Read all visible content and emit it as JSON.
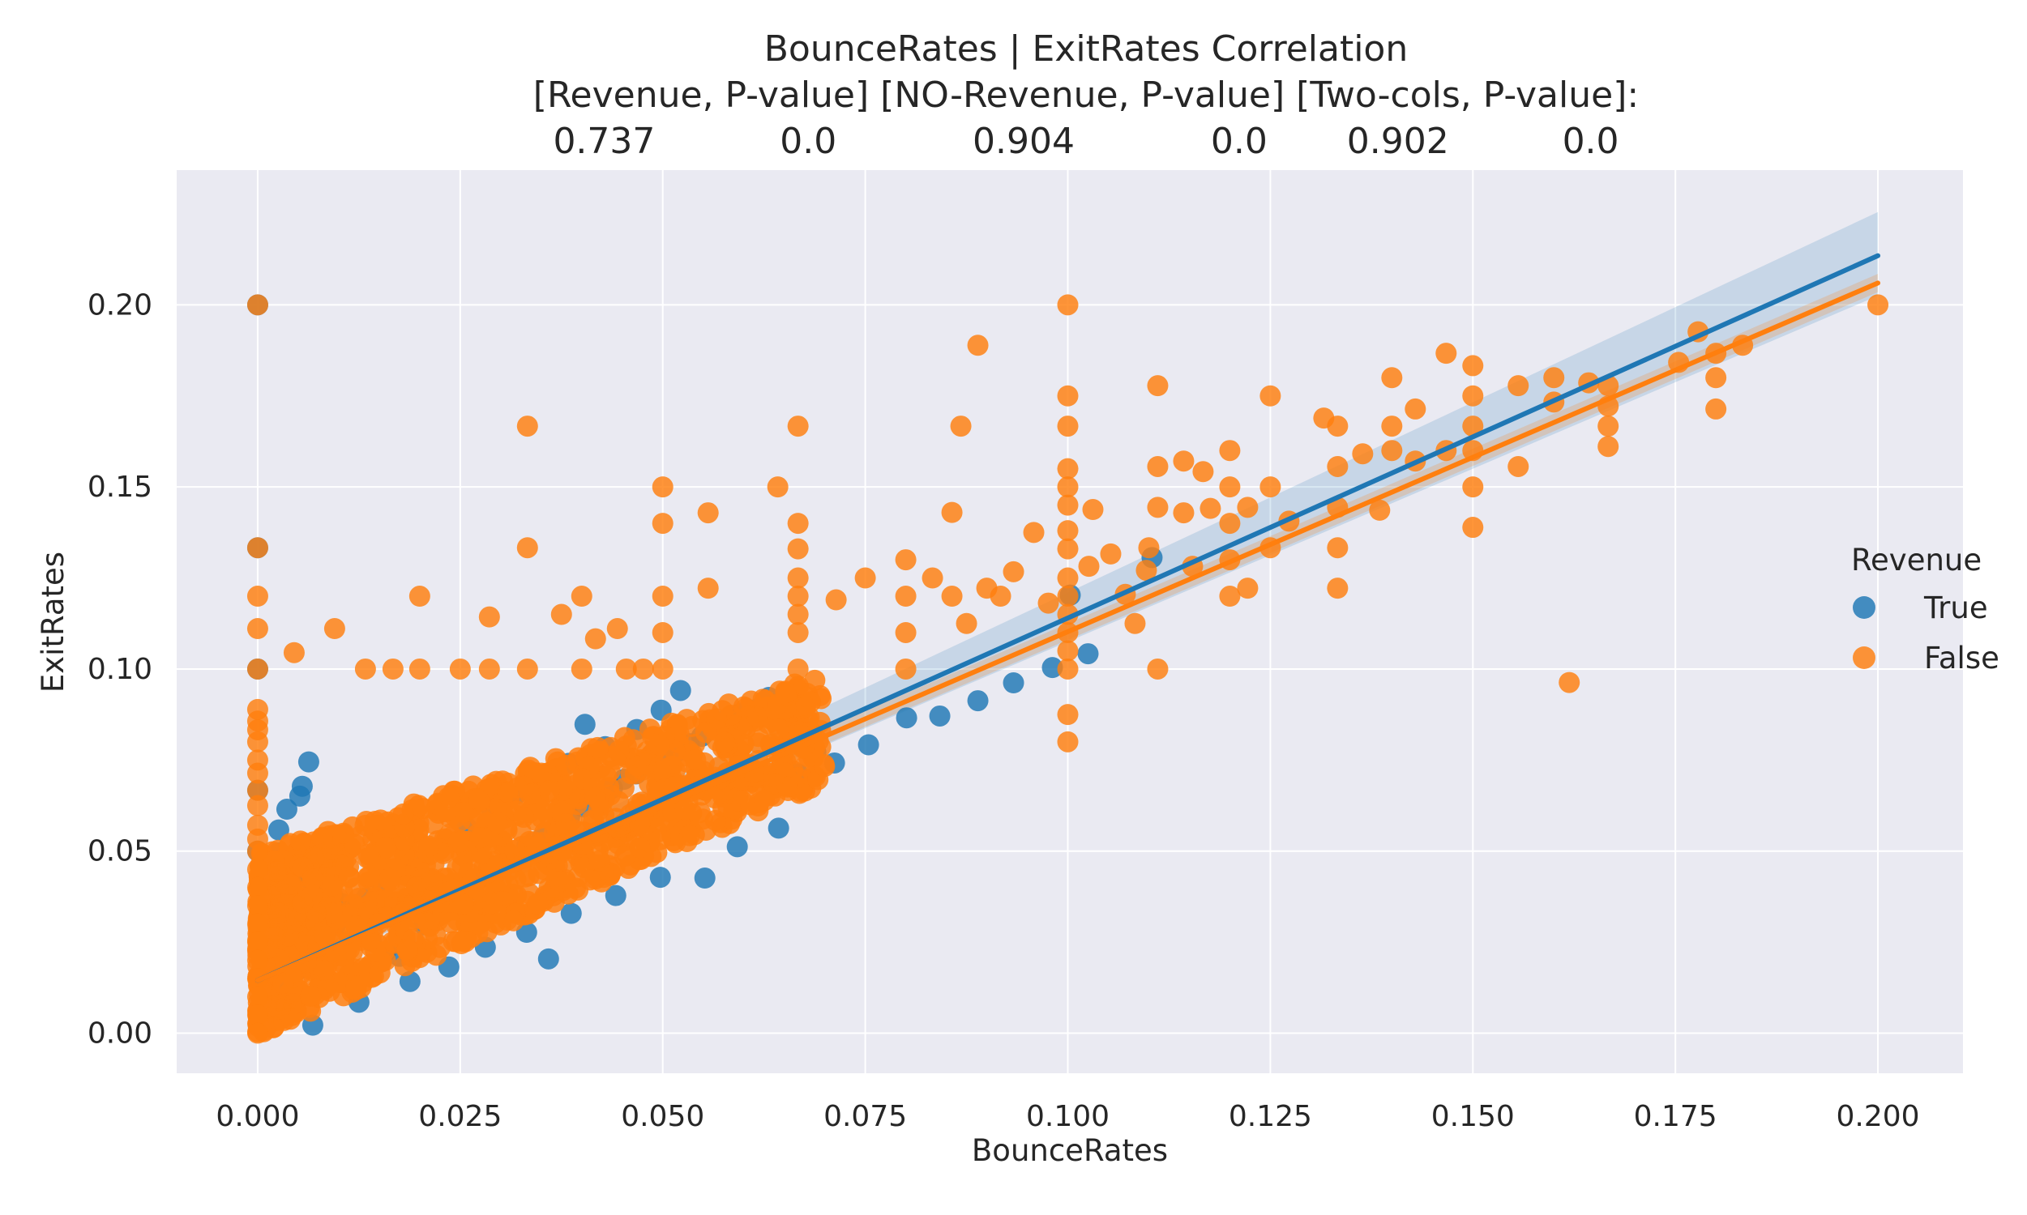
{
  "chart_data": {
    "type": "scatter",
    "title_lines": [
      "BounceRates | ExitRates    Correlation",
      "[Revenue,        P-value]    [NO-Revenue,     P-value]    [Two-cols,  P-value]:",
      "0.737           0.0            0.904            0.0       0.902          0.0"
    ],
    "correlations": [
      {
        "label": "Revenue",
        "r": 0.737,
        "p_value": 0.0
      },
      {
        "label": "NO-Revenue",
        "r": 0.904,
        "p_value": 0.0
      },
      {
        "label": "Two-cols",
        "r": 0.902,
        "p_value": 0.0
      }
    ],
    "xlabel": "BounceRates",
    "ylabel": "ExitRates",
    "xlim": [
      -0.01,
      0.2105
    ],
    "ylim": [
      -0.011,
      0.237
    ],
    "x_ticks": [
      0.0,
      0.025,
      0.05,
      0.075,
      0.1,
      0.125,
      0.15,
      0.175,
      0.2
    ],
    "x_tick_labels": [
      "0.000",
      "0.025",
      "0.050",
      "0.075",
      "0.100",
      "0.125",
      "0.150",
      "0.175",
      "0.200"
    ],
    "y_ticks": [
      0.0,
      0.05,
      0.1,
      0.15,
      0.2
    ],
    "y_tick_labels": [
      "0.00",
      "0.05",
      "0.10",
      "0.15",
      "0.20"
    ],
    "grid": true,
    "background": "#eaeaf2",
    "legend": {
      "title": "Revenue",
      "placement": "right"
    },
    "series": [
      {
        "name": "True",
        "color": "#1f77b4",
        "regression": {
          "x0": 0.0,
          "y0": 0.0145,
          "x1": 0.2,
          "y1": 0.2135,
          "ci_x1_upper": 0.2255,
          "ci_x1_lower": 0.2025
        },
        "points": [
          [
            0.0,
            0.2
          ],
          [
            0.0,
            0.1333
          ],
          [
            0.0,
            0.1
          ],
          [
            0.0,
            0.0667
          ],
          [
            0.0,
            0.05
          ],
          [
            0.0063,
            0.0745
          ],
          [
            0.0055,
            0.0678
          ],
          [
            0.0052,
            0.0651
          ],
          [
            0.0036,
            0.0615
          ],
          [
            0.0026,
            0.0558
          ],
          [
            0.0025,
            0.0495
          ],
          [
            0.0028,
            0.0462
          ],
          [
            0.0044,
            0.0435
          ],
          [
            0.0062,
            0.0427
          ],
          [
            0.008,
            0.0411
          ],
          [
            0.0093,
            0.0376
          ],
          [
            0.0105,
            0.0355
          ],
          [
            0.0117,
            0.0318
          ],
          [
            0.0128,
            0.0287
          ],
          [
            0.014,
            0.0253
          ],
          [
            0.0158,
            0.0224
          ],
          [
            0.0175,
            0.0211
          ],
          [
            0.0182,
            0.0257
          ],
          [
            0.0205,
            0.0298
          ],
          [
            0.0227,
            0.0333
          ],
          [
            0.0244,
            0.0367
          ],
          [
            0.0265,
            0.0394
          ],
          [
            0.0276,
            0.0428
          ],
          [
            0.0296,
            0.0455
          ],
          [
            0.0315,
            0.0486
          ],
          [
            0.0332,
            0.0512
          ],
          [
            0.0351,
            0.0536
          ],
          [
            0.0368,
            0.0565
          ],
          [
            0.0385,
            0.0593
          ],
          [
            0.0402,
            0.0621
          ],
          [
            0.0421,
            0.0641
          ],
          [
            0.0438,
            0.0673
          ],
          [
            0.0452,
            0.0697
          ],
          [
            0.0467,
            0.0712
          ],
          [
            0.0482,
            0.0733
          ],
          [
            0.0501,
            0.0754
          ],
          [
            0.0516,
            0.0771
          ],
          [
            0.0533,
            0.0795
          ],
          [
            0.0548,
            0.0815
          ],
          [
            0.0566,
            0.0838
          ],
          [
            0.058,
            0.0864
          ],
          [
            0.0596,
            0.0878
          ],
          [
            0.0618,
            0.0892
          ],
          [
            0.0631,
            0.0922
          ],
          [
            0.0641,
            0.0885
          ],
          [
            0.0522,
            0.0941
          ],
          [
            0.0498,
            0.0887
          ],
          [
            0.0468,
            0.0834
          ],
          [
            0.0429,
            0.0787
          ],
          [
            0.0404,
            0.0848
          ],
          [
            0.0384,
            0.0741
          ],
          [
            0.0352,
            0.0704
          ],
          [
            0.0319,
            0.0656
          ],
          [
            0.0289,
            0.0612
          ],
          [
            0.0258,
            0.0565
          ],
          [
            0.0233,
            0.0524
          ],
          [
            0.0203,
            0.0488
          ],
          [
            0.0177,
            0.0445
          ],
          [
            0.0154,
            0.0401
          ],
          [
            0.0134,
            0.0372
          ],
          [
            0.0113,
            0.0334
          ],
          [
            0.0096,
            0.0297
          ],
          [
            0.0081,
            0.0254
          ],
          [
            0.0064,
            0.0214
          ],
          [
            0.0051,
            0.0176
          ],
          [
            0.0041,
            0.0137
          ],
          [
            0.0032,
            0.0105
          ],
          [
            0.0024,
            0.0078
          ],
          [
            0.0017,
            0.0049
          ],
          [
            0.0011,
            0.0027
          ],
          [
            0.0068,
            0.0022
          ],
          [
            0.0125,
            0.0085
          ],
          [
            0.0188,
            0.0142
          ],
          [
            0.0236,
            0.0182
          ],
          [
            0.0281,
            0.0236
          ],
          [
            0.0332,
            0.0277
          ],
          [
            0.0359,
            0.0204
          ],
          [
            0.0387,
            0.0329
          ],
          [
            0.0442,
            0.0378
          ],
          [
            0.0497,
            0.0428
          ],
          [
            0.0552,
            0.0426
          ],
          [
            0.0592,
            0.0512
          ],
          [
            0.0643,
            0.0563
          ],
          [
            0.0689,
            0.0772
          ],
          [
            0.0667,
            0.0712
          ],
          [
            0.0712,
            0.0742
          ],
          [
            0.0754,
            0.0792
          ],
          [
            0.0801,
            0.0866
          ],
          [
            0.0842,
            0.0871
          ],
          [
            0.0889,
            0.0913
          ],
          [
            0.0933,
            0.0962
          ],
          [
            0.0981,
            0.1004
          ],
          [
            0.1025,
            0.1042
          ],
          [
            0.1104,
            0.1306
          ],
          [
            0.1003,
            0.1203
          ]
        ]
      },
      {
        "name": "False",
        "color": "#ff7f0e",
        "regression": {
          "x0": 0.0,
          "y0": 0.0145,
          "x1": 0.2,
          "y1": 0.206,
          "ci_x1_upper": 0.2085,
          "ci_x1_lower": 0.2035
        },
        "points": [
          [
            0.0,
            0.2
          ],
          [
            0.0,
            0.1333
          ],
          [
            0.0,
            0.12
          ],
          [
            0.0,
            0.1111
          ],
          [
            0.0,
            0.1
          ],
          [
            0.0,
            0.0889
          ],
          [
            0.0,
            0.0857
          ],
          [
            0.0,
            0.0833
          ],
          [
            0.0,
            0.08
          ],
          [
            0.0,
            0.075
          ],
          [
            0.0,
            0.0714
          ],
          [
            0.0,
            0.0667
          ],
          [
            0.0,
            0.0625
          ],
          [
            0.0,
            0.0571
          ],
          [
            0.0,
            0.0533
          ],
          [
            0.0,
            0.05
          ],
          [
            0.0,
            0.045
          ],
          [
            0.0,
            0.04
          ],
          [
            0.0,
            0.035
          ],
          [
            0.0,
            0.03
          ],
          [
            0.0,
            0.025
          ],
          [
            0.0,
            0.02
          ],
          [
            0.0,
            0.015
          ],
          [
            0.0,
            0.01
          ],
          [
            0.0,
            0.005
          ],
          [
            0.0,
            0.0
          ],
          [
            0.0333,
            0.1667
          ],
          [
            0.0667,
            0.1667
          ],
          [
            0.05,
            0.15
          ],
          [
            0.1,
            0.2
          ],
          [
            0.2,
            0.2
          ],
          [
            0.1,
            0.175
          ],
          [
            0.1,
            0.1667
          ],
          [
            0.1,
            0.155
          ],
          [
            0.1,
            0.15
          ],
          [
            0.1,
            0.145
          ],
          [
            0.1,
            0.138
          ],
          [
            0.1,
            0.133
          ],
          [
            0.1,
            0.125
          ],
          [
            0.1,
            0.12
          ],
          [
            0.1,
            0.115
          ],
          [
            0.1,
            0.11
          ],
          [
            0.1,
            0.105
          ],
          [
            0.1,
            0.1
          ],
          [
            0.1,
            0.0875
          ],
          [
            0.1,
            0.08
          ],
          [
            0.0889,
            0.1889
          ],
          [
            0.0868,
            0.1667
          ],
          [
            0.0556,
            0.1429
          ],
          [
            0.0642,
            0.15
          ],
          [
            0.0333,
            0.1333
          ],
          [
            0.0556,
            0.1222
          ],
          [
            0.0417,
            0.1083
          ],
          [
            0.0375,
            0.115
          ],
          [
            0.04,
            0.12
          ],
          [
            0.02,
            0.12
          ],
          [
            0.0286,
            0.1143
          ],
          [
            0.0095,
            0.1111
          ],
          [
            0.0045,
            0.1045
          ],
          [
            0.05,
            0.14
          ],
          [
            0.05,
            0.12
          ],
          [
            0.05,
            0.11
          ],
          [
            0.05,
            0.1
          ],
          [
            0.0667,
            0.14
          ],
          [
            0.0667,
            0.133
          ],
          [
            0.0667,
            0.125
          ],
          [
            0.0667,
            0.12
          ],
          [
            0.0667,
            0.115
          ],
          [
            0.0667,
            0.11
          ],
          [
            0.0667,
            0.1
          ],
          [
            0.075,
            0.125
          ],
          [
            0.0714,
            0.119
          ],
          [
            0.08,
            0.13
          ],
          [
            0.08,
            0.12
          ],
          [
            0.08,
            0.11
          ],
          [
            0.08,
            0.1
          ],
          [
            0.0833,
            0.125
          ],
          [
            0.0857,
            0.143
          ],
          [
            0.0857,
            0.12
          ],
          [
            0.0875,
            0.1125
          ],
          [
            0.09,
            0.1222
          ],
          [
            0.0917,
            0.12
          ],
          [
            0.0933,
            0.1267
          ],
          [
            0.0958,
            0.1375
          ],
          [
            0.0976,
            0.1181
          ],
          [
            0.1031,
            0.1438
          ],
          [
            0.1026,
            0.1282
          ],
          [
            0.1053,
            0.1316
          ],
          [
            0.1071,
            0.1205
          ],
          [
            0.1083,
            0.1125
          ],
          [
            0.1097,
            0.1271
          ],
          [
            0.11,
            0.1333
          ],
          [
            0.1111,
            0.1778
          ],
          [
            0.1111,
            0.1556
          ],
          [
            0.1111,
            0.1444
          ],
          [
            0.1111,
            0.1
          ],
          [
            0.1143,
            0.1571
          ],
          [
            0.1143,
            0.1429
          ],
          [
            0.1154,
            0.1282
          ],
          [
            0.1167,
            0.1542
          ],
          [
            0.1176,
            0.1441
          ],
          [
            0.12,
            0.16
          ],
          [
            0.12,
            0.15
          ],
          [
            0.12,
            0.14
          ],
          [
            0.12,
            0.13
          ],
          [
            0.12,
            0.12
          ],
          [
            0.1222,
            0.1222
          ],
          [
            0.1222,
            0.1444
          ],
          [
            0.125,
            0.175
          ],
          [
            0.125,
            0.15
          ],
          [
            0.125,
            0.1333
          ],
          [
            0.1273,
            0.1406
          ],
          [
            0.1316,
            0.1689
          ],
          [
            0.1333,
            0.1667
          ],
          [
            0.1333,
            0.1556
          ],
          [
            0.1333,
            0.1444
          ],
          [
            0.1333,
            0.1333
          ],
          [
            0.1333,
            0.1222
          ],
          [
            0.1364,
            0.1591
          ],
          [
            0.1385,
            0.1436
          ],
          [
            0.14,
            0.18
          ],
          [
            0.14,
            0.1667
          ],
          [
            0.14,
            0.16
          ],
          [
            0.1429,
            0.1714
          ],
          [
            0.1429,
            0.1571
          ],
          [
            0.1467,
            0.1867
          ],
          [
            0.1467,
            0.16
          ],
          [
            0.15,
            0.1833
          ],
          [
            0.15,
            0.175
          ],
          [
            0.15,
            0.1667
          ],
          [
            0.15,
            0.16
          ],
          [
            0.15,
            0.15
          ],
          [
            0.15,
            0.1389
          ],
          [
            0.1556,
            0.1778
          ],
          [
            0.1556,
            0.1556
          ],
          [
            0.16,
            0.18
          ],
          [
            0.16,
            0.1733
          ],
          [
            0.1619,
            0.0963
          ],
          [
            0.1643,
            0.1786
          ],
          [
            0.1667,
            0.1778
          ],
          [
            0.1667,
            0.1722
          ],
          [
            0.1667,
            0.1667
          ],
          [
            0.1667,
            0.1611
          ],
          [
            0.1754,
            0.1842
          ],
          [
            0.1778,
            0.1926
          ],
          [
            0.18,
            0.1867
          ],
          [
            0.18,
            0.18
          ],
          [
            0.18,
            0.1714
          ],
          [
            0.1833,
            0.1889
          ],
          [
            0.0333,
            0.1
          ],
          [
            0.0286,
            0.1
          ],
          [
            0.025,
            0.1
          ],
          [
            0.02,
            0.1
          ],
          [
            0.0167,
            0.1
          ],
          [
            0.0133,
            0.1
          ],
          [
            0.04,
            0.1
          ],
          [
            0.0444,
            0.1111
          ],
          [
            0.0455,
            0.1
          ],
          [
            0.0476,
            0.1
          ]
        ],
        "dense_band": {
          "x_min": 0.0,
          "x_max": 0.07,
          "center_intercept": 0.0145,
          "center_slope": 0.99,
          "spread_low": 0.015,
          "spread_high": 0.035
        }
      }
    ]
  }
}
